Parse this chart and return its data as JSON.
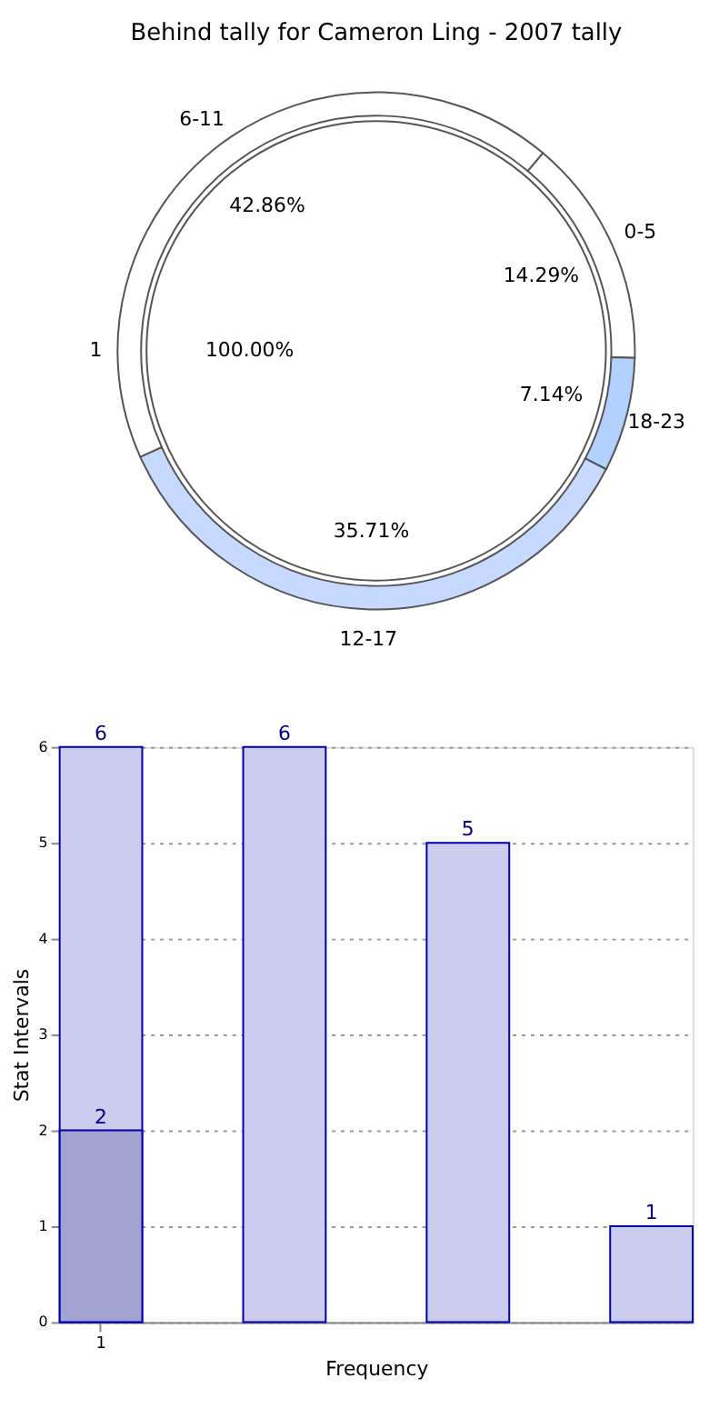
{
  "chart_data": [
    {
      "type": "donut",
      "title": "Behind tally for Cameron Ling - 2007 tally",
      "categories": [
        "0-5",
        "18-23",
        "12-17",
        "6-11"
      ],
      "values": [
        14.29,
        7.14,
        35.71,
        42.86
      ],
      "colors": [
        "#ffffff",
        "#b3d1ff",
        "#c6d9ff",
        "#ffffff"
      ],
      "value_labels": [
        "14.29%",
        "7.14%",
        "35.71%",
        "42.86%"
      ]
    },
    {
      "type": "pie",
      "categories": [
        "1"
      ],
      "values": [
        100
      ],
      "colors": [
        "#ffffff"
      ],
      "value_labels": [
        "100.00%"
      ]
    },
    {
      "type": "bar",
      "xlabel": "Frequency",
      "ylabel": "Stat Intervals",
      "categories": [
        "1",
        null,
        null,
        null
      ],
      "series": [
        {
          "color": "#ccccee",
          "values": [
            6,
            6,
            5,
            1
          ]
        },
        {
          "color": "#a3a3d1",
          "values": [
            2,
            null,
            null,
            null
          ]
        }
      ],
      "ylim": [
        0,
        6
      ],
      "yticks": [
        0,
        1,
        2,
        3,
        4,
        5,
        6
      ],
      "grid": true,
      "data_labels": true
    }
  ]
}
